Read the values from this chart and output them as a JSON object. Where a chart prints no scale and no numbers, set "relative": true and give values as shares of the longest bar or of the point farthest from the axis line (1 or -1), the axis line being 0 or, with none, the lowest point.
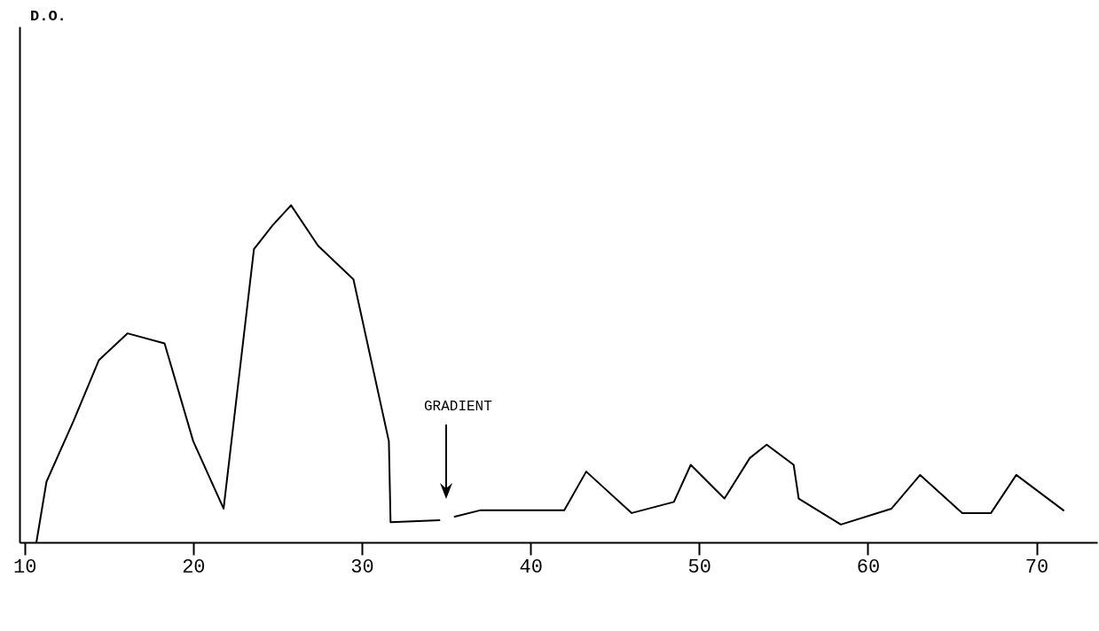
{
  "chart_data": {
    "type": "line",
    "relative": true,
    "tick_labels": "x",
    "marker": "none",
    "line_style": "solid",
    "grid": false,
    "x": [
      10.7,
      11.3,
      12.9,
      14.4,
      16.1,
      18.3,
      20.0,
      21.8,
      23.6,
      24.7,
      25.8,
      27.4,
      29.5,
      31.6,
      31.7,
      34.6,
      34.8,
      35.5,
      37.0,
      42.0,
      43.3,
      46.0,
      48.5,
      49.5,
      51.5,
      53.0,
      54.0,
      55.6,
      55.9,
      58.4,
      61.4,
      63.1,
      65.6,
      67.3,
      68.8,
      71.6
    ],
    "series": [
      {
        "color": "#000000",
        "values": [
          0,
          0.18,
          0.36,
          0.54,
          0.62,
          0.59,
          0.3,
          0.1,
          0.87,
          0.94,
          1,
          0.88,
          0.78,
          0.3,
          0.06,
          0.066,
          null,
          0.076,
          0.095,
          0.095,
          0.21,
          0.087,
          0.12,
          0.23,
          0.13,
          0.25,
          0.29,
          0.23,
          0.13,
          0.053,
          0.1,
          0.2,
          0.087,
          0.087,
          0.2,
          0.095
        ]
      }
    ],
    "xlim": [
      9.7,
      73.6
    ],
    "xticks": [
      10,
      20,
      30,
      40,
      50,
      60,
      70
    ],
    "annotations": [
      "D.O.",
      "GRADIENT"
    ]
  }
}
